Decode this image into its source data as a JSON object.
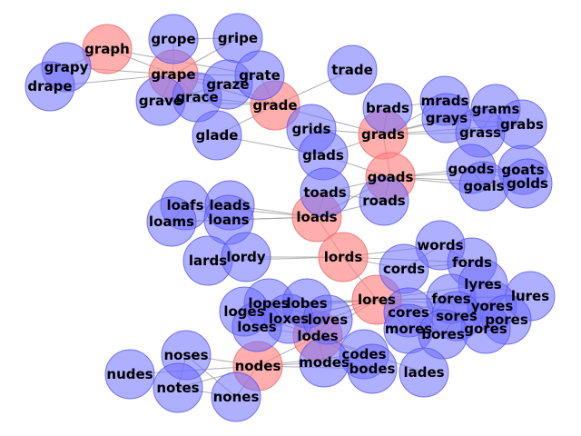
{
  "graph": {
    "colors": {
      "path_node": "#ff8a8a",
      "other_node": "#7a7aff",
      "edge": "#9a9a9a"
    },
    "nodes": [
      {
        "id": "graph",
        "path": true
      },
      {
        "id": "grape",
        "path": true
      },
      {
        "id": "grade",
        "path": true
      },
      {
        "id": "grads",
        "path": true
      },
      {
        "id": "goads",
        "path": true
      },
      {
        "id": "loads",
        "path": true
      },
      {
        "id": "lords",
        "path": true
      },
      {
        "id": "lores",
        "path": true
      },
      {
        "id": "lodes",
        "path": true
      },
      {
        "id": "nodes",
        "path": true
      },
      {
        "id": "grope",
        "path": false
      },
      {
        "id": "gripe",
        "path": false
      },
      {
        "id": "grapy",
        "path": false
      },
      {
        "id": "drape",
        "path": false
      },
      {
        "id": "grave",
        "path": false
      },
      {
        "id": "grace",
        "path": false
      },
      {
        "id": "graze",
        "path": false
      },
      {
        "id": "grate",
        "path": false
      },
      {
        "id": "trade",
        "path": false
      },
      {
        "id": "glade",
        "path": false
      },
      {
        "id": "brads",
        "path": false
      },
      {
        "id": "grids",
        "path": false
      },
      {
        "id": "glads",
        "path": false
      },
      {
        "id": "mrads",
        "path": false
      },
      {
        "id": "grays",
        "path": false
      },
      {
        "id": "grams",
        "path": false
      },
      {
        "id": "grabs",
        "path": false
      },
      {
        "id": "grass",
        "path": false
      },
      {
        "id": "goods",
        "path": false
      },
      {
        "id": "goats",
        "path": false
      },
      {
        "id": "goals",
        "path": false
      },
      {
        "id": "golds",
        "path": false
      },
      {
        "id": "toads",
        "path": false
      },
      {
        "id": "roads",
        "path": false
      },
      {
        "id": "loafs",
        "path": false
      },
      {
        "id": "leads",
        "path": false
      },
      {
        "id": "loams",
        "path": false
      },
      {
        "id": "loans",
        "path": false
      },
      {
        "id": "lards",
        "path": false
      },
      {
        "id": "lordy",
        "path": false
      },
      {
        "id": "words",
        "path": false
      },
      {
        "id": "fords",
        "path": false
      },
      {
        "id": "cords",
        "path": false
      },
      {
        "id": "lyres",
        "path": false
      },
      {
        "id": "lures",
        "path": false
      },
      {
        "id": "fores",
        "path": false
      },
      {
        "id": "yores",
        "path": false
      },
      {
        "id": "cores",
        "path": false
      },
      {
        "id": "sores",
        "path": false
      },
      {
        "id": "pores",
        "path": false
      },
      {
        "id": "mores",
        "path": false
      },
      {
        "id": "gores",
        "path": false
      },
      {
        "id": "bores",
        "path": false
      },
      {
        "id": "lopes",
        "path": false
      },
      {
        "id": "lobes",
        "path": false
      },
      {
        "id": "loges",
        "path": false
      },
      {
        "id": "loxes",
        "path": false
      },
      {
        "id": "loves",
        "path": false
      },
      {
        "id": "loses",
        "path": false
      },
      {
        "id": "codes",
        "path": false
      },
      {
        "id": "modes",
        "path": false
      },
      {
        "id": "bodes",
        "path": false
      },
      {
        "id": "lades",
        "path": false
      },
      {
        "id": "noses",
        "path": false
      },
      {
        "id": "nudes",
        "path": false
      },
      {
        "id": "notes",
        "path": false
      },
      {
        "id": "nones",
        "path": false
      }
    ],
    "edges": [
      [
        "graph",
        "grape"
      ],
      [
        "graph",
        "grapy"
      ],
      [
        "graph",
        "grate"
      ],
      [
        "grape",
        "grope"
      ],
      [
        "grape",
        "gripe"
      ],
      [
        "grape",
        "grapy"
      ],
      [
        "grape",
        "drape"
      ],
      [
        "grape",
        "grave"
      ],
      [
        "grape",
        "grace"
      ],
      [
        "grape",
        "graze"
      ],
      [
        "grape",
        "grate"
      ],
      [
        "grape",
        "grade"
      ],
      [
        "grope",
        "gripe"
      ],
      [
        "grave",
        "grace"
      ],
      [
        "grave",
        "graze"
      ],
      [
        "grave",
        "grade"
      ],
      [
        "grace",
        "graze"
      ],
      [
        "grace",
        "grate"
      ],
      [
        "grace",
        "grade"
      ],
      [
        "graze",
        "grate"
      ],
      [
        "graze",
        "grade"
      ],
      [
        "grate",
        "grade"
      ],
      [
        "grade",
        "trade"
      ],
      [
        "grade",
        "glade"
      ],
      [
        "grade",
        "grads"
      ],
      [
        "glade",
        "glads"
      ],
      [
        "grads",
        "brads"
      ],
      [
        "grads",
        "grids"
      ],
      [
        "grads",
        "glads"
      ],
      [
        "grads",
        "mrads"
      ],
      [
        "grads",
        "grays"
      ],
      [
        "grads",
        "grams"
      ],
      [
        "grads",
        "grabs"
      ],
      [
        "grads",
        "grass"
      ],
      [
        "grads",
        "goads"
      ],
      [
        "brads",
        "mrads"
      ],
      [
        "grays",
        "grams"
      ],
      [
        "grays",
        "grabs"
      ],
      [
        "grays",
        "grass"
      ],
      [
        "grams",
        "grabs"
      ],
      [
        "grams",
        "grass"
      ],
      [
        "grabs",
        "grass"
      ],
      [
        "goads",
        "glads"
      ],
      [
        "goads",
        "goods"
      ],
      [
        "goads",
        "goats"
      ],
      [
        "goads",
        "goals"
      ],
      [
        "goads",
        "golds"
      ],
      [
        "goads",
        "toads"
      ],
      [
        "goads",
        "roads"
      ],
      [
        "goads",
        "loads"
      ],
      [
        "goods",
        "goats"
      ],
      [
        "goods",
        "goals"
      ],
      [
        "goods",
        "golds"
      ],
      [
        "goats",
        "goals"
      ],
      [
        "goats",
        "golds"
      ],
      [
        "goals",
        "golds"
      ],
      [
        "toads",
        "roads"
      ],
      [
        "toads",
        "loads"
      ],
      [
        "roads",
        "loads"
      ],
      [
        "loads",
        "loafs"
      ],
      [
        "loads",
        "leads"
      ],
      [
        "loads",
        "loams"
      ],
      [
        "loads",
        "loans"
      ],
      [
        "loads",
        "lords"
      ],
      [
        "loafs",
        "loams"
      ],
      [
        "loafs",
        "loans"
      ],
      [
        "loams",
        "loans"
      ],
      [
        "lords",
        "lards"
      ],
      [
        "lords",
        "lordy"
      ],
      [
        "lords",
        "words"
      ],
      [
        "lords",
        "fords"
      ],
      [
        "lords",
        "cords"
      ],
      [
        "lords",
        "lores"
      ],
      [
        "words",
        "fords"
      ],
      [
        "words",
        "cords"
      ],
      [
        "fords",
        "cords"
      ],
      [
        "lores",
        "lyres"
      ],
      [
        "lores",
        "lures"
      ],
      [
        "lores",
        "fores"
      ],
      [
        "lores",
        "yores"
      ],
      [
        "lores",
        "cores"
      ],
      [
        "lores",
        "sores"
      ],
      [
        "lores",
        "pores"
      ],
      [
        "lores",
        "mores"
      ],
      [
        "lores",
        "gores"
      ],
      [
        "lores",
        "bores"
      ],
      [
        "lores",
        "lopes"
      ],
      [
        "lores",
        "lobes"
      ],
      [
        "lores",
        "loges"
      ],
      [
        "lores",
        "loxes"
      ],
      [
        "lores",
        "loves"
      ],
      [
        "lores",
        "loses"
      ],
      [
        "lores",
        "lodes"
      ],
      [
        "lyres",
        "lures"
      ],
      [
        "fores",
        "yores"
      ],
      [
        "fores",
        "cores"
      ],
      [
        "fores",
        "sores"
      ],
      [
        "fores",
        "pores"
      ],
      [
        "fores",
        "mores"
      ],
      [
        "cores",
        "sores"
      ],
      [
        "cores",
        "mores"
      ],
      [
        "cores",
        "bores"
      ],
      [
        "sores",
        "pores"
      ],
      [
        "sores",
        "gores"
      ],
      [
        "sores",
        "bores"
      ],
      [
        "pores",
        "gores"
      ],
      [
        "mores",
        "bores"
      ],
      [
        "gores",
        "bores"
      ],
      [
        "lopes",
        "lobes"
      ],
      [
        "lopes",
        "loges"
      ],
      [
        "lopes",
        "loxes"
      ],
      [
        "lopes",
        "loves"
      ],
      [
        "lopes",
        "loses"
      ],
      [
        "lopes",
        "lodes"
      ],
      [
        "lobes",
        "loves"
      ],
      [
        "lobes",
        "lodes"
      ],
      [
        "loges",
        "loxes"
      ],
      [
        "loges",
        "loses"
      ],
      [
        "loges",
        "lodes"
      ],
      [
        "loxes",
        "loves"
      ],
      [
        "loxes",
        "lodes"
      ],
      [
        "loves",
        "lodes"
      ],
      [
        "loses",
        "lodes"
      ],
      [
        "lodes",
        "codes"
      ],
      [
        "lodes",
        "modes"
      ],
      [
        "lodes",
        "bodes"
      ],
      [
        "lodes",
        "lades"
      ],
      [
        "lodes",
        "nodes"
      ],
      [
        "codes",
        "modes"
      ],
      [
        "codes",
        "bodes"
      ],
      [
        "codes",
        "nodes"
      ],
      [
        "modes",
        "bodes"
      ],
      [
        "modes",
        "nodes"
      ],
      [
        "bodes",
        "nodes"
      ],
      [
        "nodes",
        "noses"
      ],
      [
        "nodes",
        "nudes"
      ],
      [
        "nodes",
        "notes"
      ],
      [
        "nodes",
        "nones"
      ],
      [
        "noses",
        "notes"
      ],
      [
        "noses",
        "nones"
      ],
      [
        "notes",
        "nones"
      ]
    ]
  }
}
